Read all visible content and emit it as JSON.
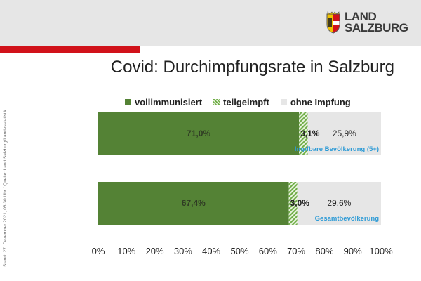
{
  "header": {
    "logo_line1": "LAND",
    "logo_line2": "SALZBURG",
    "title": "Covid: Durchimpfungsrate in Salzburg"
  },
  "side_note": "Stand: 27. Dezember 2021, 08:30 Uhr / Quelle: Land Salzburg/Landesstatistik",
  "colors": {
    "header_bg": "#e6e6e6",
    "accent_red": "#d1121a",
    "vollimmunisiert": "#548235",
    "teilgeimpft": "#70ad47",
    "ohne_impfung": "#e6e6e6",
    "group_label": "#2e9bd6"
  },
  "chart_data": {
    "type": "bar",
    "orientation": "horizontal",
    "stacked": true,
    "categories": [
      "Impfbare Bevölkerung (5+)",
      "Gesamtbevölkerung"
    ],
    "series": [
      {
        "name": "vollimmunisiert",
        "values": [
          71.0,
          67.4
        ],
        "labels": [
          "71,0%",
          "67,4%"
        ]
      },
      {
        "name": "teilgeimpft",
        "values": [
          3.1,
          3.0
        ],
        "labels": [
          "3,1%",
          "3,0%"
        ]
      },
      {
        "name": "ohne Impfung",
        "values": [
          25.9,
          29.6
        ],
        "labels": [
          "25,9%",
          "29,6%"
        ]
      }
    ],
    "xlim": [
      0,
      100
    ],
    "x_ticks": [
      "0%",
      "10%",
      "20%",
      "30%",
      "40%",
      "50%",
      "60%",
      "70%",
      "80%",
      "90%",
      "100%"
    ],
    "legend_position": "top",
    "grid": false
  }
}
